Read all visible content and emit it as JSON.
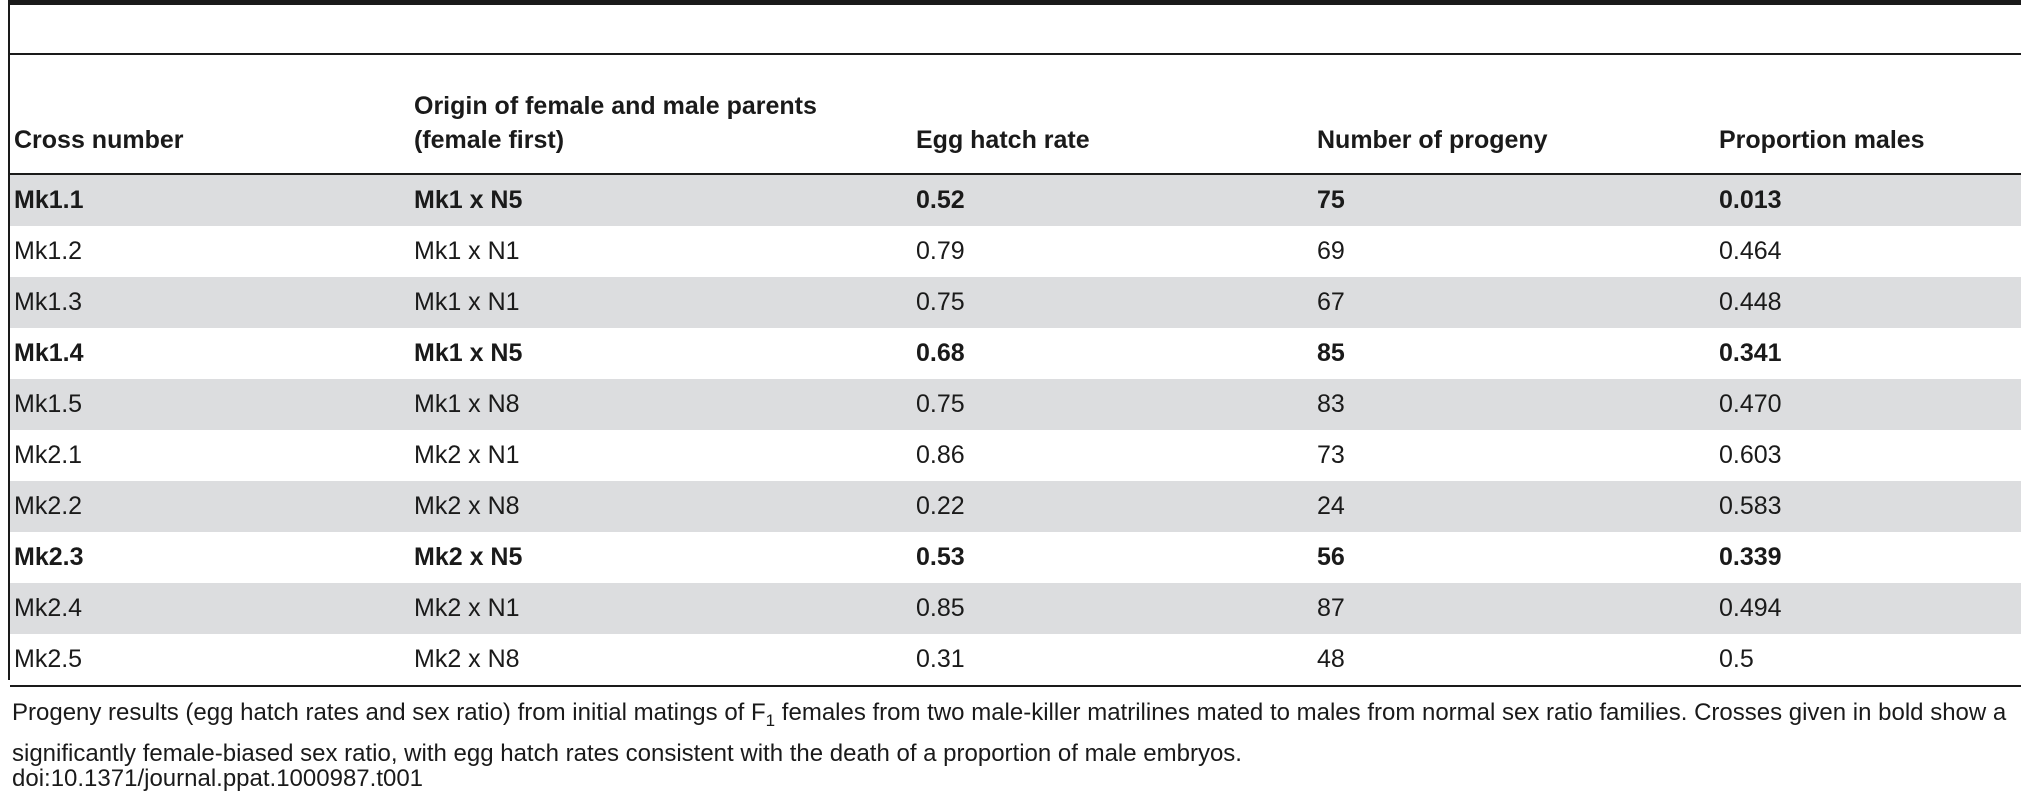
{
  "table": {
    "headers": [
      "Cross number",
      "Origin of female and male parents (female first)",
      "Egg hatch rate",
      "Number of progeny",
      "Proportion males"
    ],
    "rows": [
      {
        "cells": [
          "Mk1.1",
          "Mk1 x N5",
          "0.52",
          "75",
          "0.013"
        ],
        "bold": true,
        "shaded": true
      },
      {
        "cells": [
          "Mk1.2",
          "Mk1 x N1",
          "0.79",
          "69",
          "0.464"
        ],
        "bold": false,
        "shaded": false
      },
      {
        "cells": [
          "Mk1.3",
          "Mk1 x N1",
          "0.75",
          "67",
          "0.448"
        ],
        "bold": false,
        "shaded": true
      },
      {
        "cells": [
          "Mk1.4",
          "Mk1 x N5",
          "0.68",
          "85",
          "0.341"
        ],
        "bold": true,
        "shaded": false
      },
      {
        "cells": [
          "Mk1.5",
          "Mk1 x N8",
          "0.75",
          "83",
          "0.470"
        ],
        "bold": false,
        "shaded": true
      },
      {
        "cells": [
          "Mk2.1",
          "Mk2 x N1",
          "0.86",
          "73",
          "0.603"
        ],
        "bold": false,
        "shaded": false
      },
      {
        "cells": [
          "Mk2.2",
          "Mk2 x N8",
          "0.22",
          "24",
          "0.583"
        ],
        "bold": false,
        "shaded": true
      },
      {
        "cells": [
          "Mk2.3",
          "Mk2 x N5",
          "0.53",
          "56",
          "0.339"
        ],
        "bold": true,
        "shaded": false
      },
      {
        "cells": [
          "Mk2.4",
          "Mk2 x N1",
          "0.85",
          "87",
          "0.494"
        ],
        "bold": false,
        "shaded": true
      },
      {
        "cells": [
          "Mk2.5",
          "Mk2 x N8",
          "0.31",
          "48",
          "0.5"
        ],
        "bold": false,
        "shaded": false
      }
    ]
  },
  "caption": {
    "text_before_sub": "Progeny results (egg hatch rates and sex ratio) from initial matings of F",
    "subscript": "1",
    "text_after_sub": " females from two male-killer matrilines mated to males from normal sex ratio families. Crosses given in bold show a significantly female-biased sex ratio, with egg hatch rates consistent with the death of a proportion of male embryos.",
    "doi": "doi:10.1371/journal.ppat.1000987.t001"
  },
  "colors": {
    "rule": "#1a1a1a",
    "shaded_row": "#dcdddf"
  }
}
